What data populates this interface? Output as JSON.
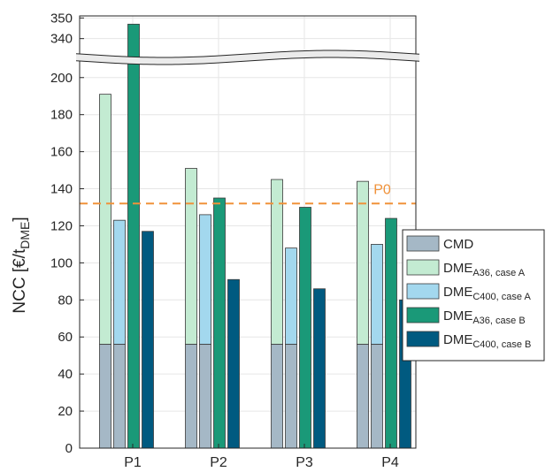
{
  "chart_data": {
    "type": "bar",
    "ylabel": "NCC [€/t",
    "ylabel_sub": "DME",
    "ylabel_end": "]",
    "categories": [
      "P1",
      "P2",
      "P3",
      "P4"
    ],
    "y_ticks_lower": [
      "0",
      "20",
      "40",
      "60",
      "80",
      "100",
      "120",
      "140",
      "160",
      "180",
      "200"
    ],
    "y_ticks_upper": [
      "340",
      "350"
    ],
    "ylim_lower": [
      0,
      208
    ],
    "ylim_upper": [
      333,
      351
    ],
    "axis_break": true,
    "grid": true,
    "legend_position": "right",
    "stacked_base_value": 56,
    "series": [
      {
        "name": "CMD",
        "sub": "",
        "color": "#a5b8c6",
        "values": [
          56,
          56,
          56,
          56
        ]
      },
      {
        "name": "DME",
        "sub": "A36, case A",
        "color": "#c3ebd2",
        "values": [
          191,
          151,
          145,
          144
        ]
      },
      {
        "name": "DME",
        "sub": "C400, case A",
        "color": "#a3d8ee",
        "values": [
          123,
          126,
          108,
          110
        ]
      },
      {
        "name": "DME",
        "sub": "A36, case B",
        "color": "#1a9978",
        "values": [
          347,
          135,
          130,
          124
        ]
      },
      {
        "name": "DME",
        "sub": "C400, case B",
        "color": "#005a80",
        "values": [
          117,
          91,
          86,
          80
        ]
      }
    ],
    "reference_line": {
      "label": "P0",
      "value": 132,
      "color": "#f0923a"
    }
  }
}
